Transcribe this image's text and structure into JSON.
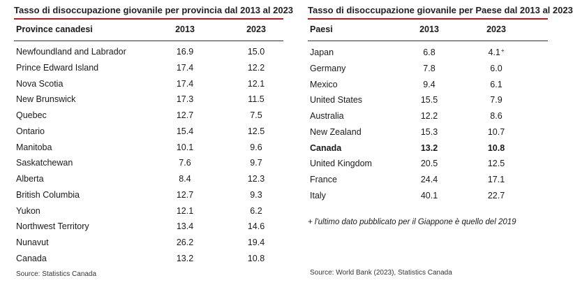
{
  "left": {
    "title": "Tasso di disoccupazione giovanile per provincia dal 2013 al 2023",
    "headers": [
      "Province canadesi",
      "2013",
      "2023"
    ],
    "rows": [
      [
        "Newfoundland and Labrador",
        "16.9",
        "15.0"
      ],
      [
        "Prince Edward Island",
        "17.4",
        "12.2"
      ],
      [
        "Nova Scotia",
        "17.4",
        "12.1"
      ],
      [
        "New Brunswick",
        "17.3",
        "11.5"
      ],
      [
        "Quebec",
        "12.7",
        "7.5"
      ],
      [
        "Ontario",
        "15.4",
        "12.5"
      ],
      [
        "Manitoba",
        "10.1",
        "9.6"
      ],
      [
        "Saskatchewan",
        "7.6",
        "9.7"
      ],
      [
        "Alberta",
        "8.4",
        "12.3"
      ],
      [
        "British Columbia",
        "12.7",
        "9.3"
      ],
      [
        "Yukon",
        "12.1",
        "6.2"
      ],
      [
        "Northwest Territory",
        "13.4",
        "14.6"
      ],
      [
        "Nunavut",
        "26.2",
        "19.4"
      ],
      [
        "Canada",
        "13.2",
        "10.8"
      ]
    ],
    "source": "Source: Statistics Canada"
  },
  "right": {
    "title": "Tasso di disoccupazione giovanile per Paese dal 2013 al 2023",
    "headers": [
      "Paesi",
      "2013",
      "2023"
    ],
    "rows": [
      [
        "Japan",
        "6.8",
        "4.1"
      ],
      [
        "Germany",
        "7.8",
        "6.0"
      ],
      [
        "Mexico",
        "9.4",
        "6.1"
      ],
      [
        "United States",
        "15.5",
        "7.9"
      ],
      [
        "Australia",
        "12.2",
        "8.6"
      ],
      [
        "New Zealand",
        "15.3",
        "10.7"
      ],
      [
        "Canada",
        "13.2",
        "10.8"
      ],
      [
        "United Kingdom",
        "20.5",
        "12.5"
      ],
      [
        "France",
        "24.4",
        "17.1"
      ],
      [
        "Italy",
        "40.1",
        "22.7"
      ]
    ],
    "japan_marker": "+",
    "note": "+ l'ultimo dato pubblicato per il Giappone è quello del 2019",
    "source": "Source: World Bank (2023), Statistics Canada"
  },
  "colors": {
    "accent": "#c4161c",
    "text": "#1a1a1a"
  }
}
